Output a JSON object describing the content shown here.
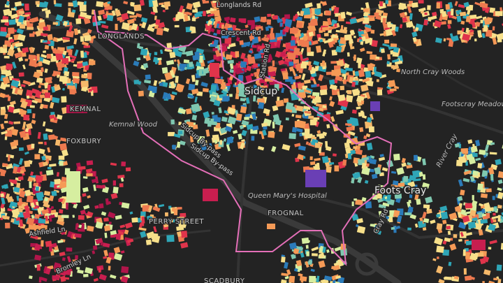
{
  "labels": {
    "sidcup": "Sidcup",
    "foots_cray": "Foots Cray",
    "kemnal": "KEMNAL",
    "kemnal_wood": "Kemnal Wood",
    "foxbury": "FOXBURY",
    "north_cray_woods": "North Cray Woods",
    "footscray_meadows": "Footscray Meadows",
    "river_cray": "River Cray",
    "sidcup_bypass_1": "Sidcup By-pass",
    "sidcup_bypass_2": "Sidcup By-pass",
    "queen_marys": "Queen Mary's Hospital",
    "frognal": "FROGNAL",
    "perry_street": "PERRY STREET",
    "ashfield_ln": "Ashfield Ln",
    "bromley_ln": "Bromley Ln",
    "scadbury": "SCADBURY",
    "crescent_rd": "Crescent Rd",
    "longlands_rd": "Longlands Rd",
    "longlands": "LONGLANDS",
    "station_rd": "Station Rd",
    "cray_rd": "Cray Rd"
  }
}
